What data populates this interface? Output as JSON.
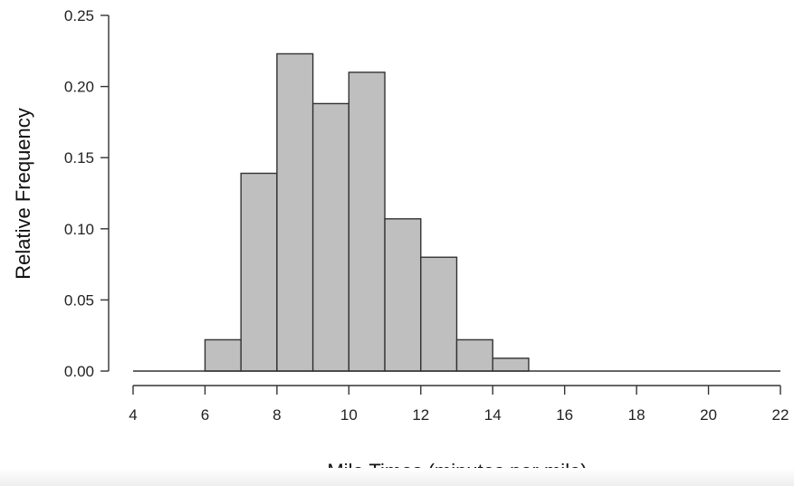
{
  "chart_data": {
    "type": "bar",
    "xlabel": "Mile Times (minutes per mile)",
    "ylabel": "Relative Frequency",
    "xlim": [
      4,
      22
    ],
    "ylim": [
      0,
      0.25
    ],
    "xticks": [
      "4",
      "6",
      "8",
      "10",
      "12",
      "14",
      "16",
      "18",
      "20",
      "22"
    ],
    "yticks": [
      "0.00",
      "0.05",
      "0.10",
      "0.15",
      "0.20",
      "0.25"
    ],
    "bins": [
      {
        "start": 6,
        "end": 7,
        "value": 0.022
      },
      {
        "start": 7,
        "end": 8,
        "value": 0.139
      },
      {
        "start": 8,
        "end": 9,
        "value": 0.223
      },
      {
        "start": 9,
        "end": 10,
        "value": 0.188
      },
      {
        "start": 10,
        "end": 11,
        "value": 0.21
      },
      {
        "start": 11,
        "end": 12,
        "value": 0.107
      },
      {
        "start": 12,
        "end": 13,
        "value": 0.08
      },
      {
        "start": 13,
        "end": 14,
        "value": 0.022
      },
      {
        "start": 14,
        "end": 15,
        "value": 0.009
      }
    ],
    "bar_color": "#bfbfbf",
    "grid": false
  }
}
